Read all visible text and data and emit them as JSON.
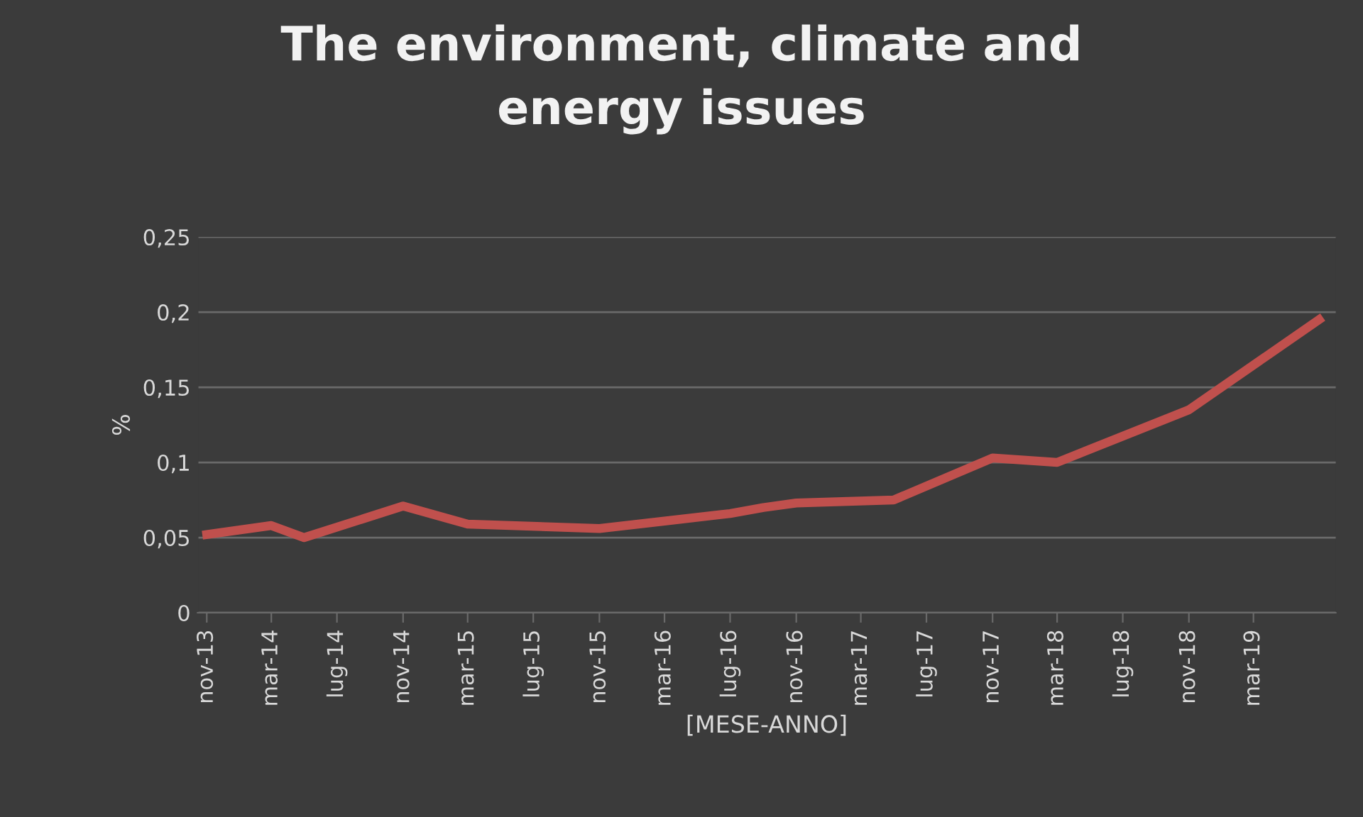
{
  "chart_data": {
    "type": "line",
    "title": "The environment, climate and\nenergy issues",
    "xlabel": "[MESE-ANNO]",
    "ylabel": "%",
    "x": [
      "2013-11",
      "2014-03",
      "2014-05",
      "2014-11",
      "2015-03",
      "2015-11",
      "2016-03",
      "2016-07",
      "2016-09",
      "2016-11",
      "2017-05",
      "2017-11",
      "2018-03",
      "2018-11",
      "2019-07"
    ],
    "series": [
      {
        "color": "#c0504d",
        "values": [
          0.052,
          0.058,
          0.05,
          0.071,
          0.059,
          0.056,
          0.061,
          0.066,
          0.07,
          0.073,
          0.075,
          0.103,
          0.1,
          0.135,
          0.195
        ]
      }
    ],
    "xlim": [
      "2013-10-15",
      "2019-08-01"
    ],
    "xticks": [
      {
        "value": "2013-11",
        "label": "nov-13"
      },
      {
        "value": "2014-03",
        "label": "mar-14"
      },
      {
        "value": "2014-07",
        "label": "lug-14"
      },
      {
        "value": "2014-11",
        "label": "nov-14"
      },
      {
        "value": "2015-03",
        "label": "mar-15"
      },
      {
        "value": "2015-07",
        "label": "lug-15"
      },
      {
        "value": "2015-11",
        "label": "nov-15"
      },
      {
        "value": "2016-03",
        "label": "mar-16"
      },
      {
        "value": "2016-07",
        "label": "lug-16"
      },
      {
        "value": "2016-11",
        "label": "nov-16"
      },
      {
        "value": "2017-03",
        "label": "mar-17"
      },
      {
        "value": "2017-07",
        "label": "lug-17"
      },
      {
        "value": "2017-11",
        "label": "nov-17"
      },
      {
        "value": "2018-03",
        "label": "mar-18"
      },
      {
        "value": "2018-07",
        "label": "lug-18"
      },
      {
        "value": "2018-11",
        "label": "nov-18"
      },
      {
        "value": "2019-03",
        "label": "mar-19"
      }
    ],
    "ylim": [
      0,
      0.25
    ],
    "yticks": [
      0,
      {
        "value": 0.05,
        "label": "0,05"
      },
      {
        "value": 0.1,
        "label": "0,1"
      },
      {
        "value": 0.15,
        "label": "0,15"
      },
      {
        "value": 0.2,
        "label": "0,2"
      },
      {
        "value": 0.25,
        "label": "0,25"
      }
    ],
    "grid": "y",
    "marker": "none",
    "line_style": "solid",
    "legend": false
  }
}
